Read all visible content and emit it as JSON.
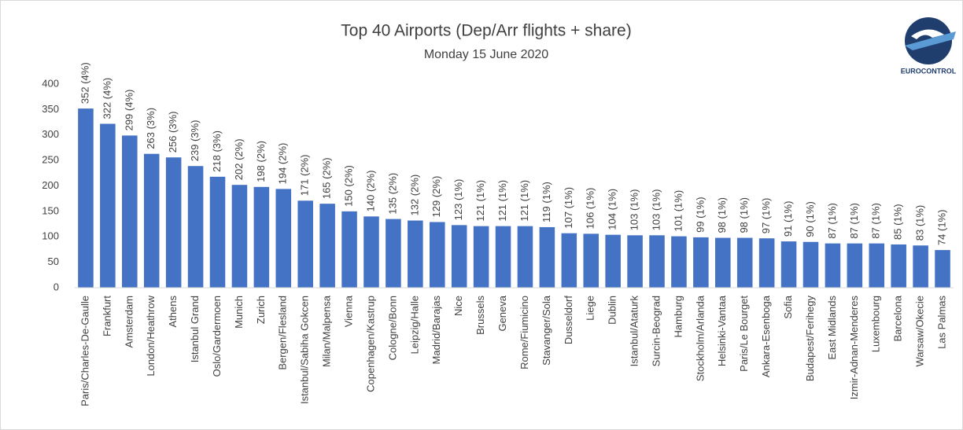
{
  "chart_data": {
    "type": "bar",
    "title": "Top 40 Airports (Dep/Arr flights + share)",
    "subtitle": "Monday 15 June 2020",
    "logo_text": "EUROCONTROL",
    "categories": [
      "Paris/Charles-De-Gaulle",
      "Frankfurt",
      "Amsterdam",
      "London/Heathrow",
      "Athens",
      "Istanbul Grand",
      "Oslo/Gardermoen",
      "Munich",
      "Zurich",
      "Bergen/Flesland",
      "Istanbul/Sabiha Gokcen",
      "Milan/Malpensa",
      "Vienna",
      "Copenhagen/Kastrup",
      "Cologne/Bonn",
      "Leipzig/Halle",
      "Madrid/Barajas",
      "Nice",
      "Brussels",
      "Geneva",
      "Rome/Fiumicino",
      "Stavanger/Sola",
      "Dusseldorf",
      "Liege",
      "Dublin",
      "Istanbul/Ataturk",
      "Surcin-Beograd",
      "Hamburg",
      "Stockholm/Arlanda",
      "Helsinki-Vantaa",
      "Paris/Le Bourget",
      "Ankara-Esenboga",
      "Sofia",
      "Budapest/Ferihegy",
      "East Midlands",
      "Izmir-Adnan-Menderes",
      "Luxembourg",
      "Barcelona",
      "Warsaw/Okecie",
      "Las Palmas"
    ],
    "values": [
      352,
      322,
      299,
      263,
      256,
      239,
      218,
      202,
      198,
      194,
      171,
      165,
      150,
      140,
      135,
      132,
      129,
      123,
      121,
      121,
      121,
      119,
      107,
      106,
      104,
      103,
      103,
      101,
      99,
      98,
      98,
      97,
      91,
      90,
      87,
      87,
      87,
      85,
      83,
      74
    ],
    "value_labels": [
      "352 (4%)",
      "322 (4%)",
      "299 (4%)",
      "263 (3%)",
      "256 (3%)",
      "239 (3%)",
      "218 (3%)",
      "202 (2%)",
      "198 (2%)",
      "194 (2%)",
      "171 (2%)",
      "165 (2%)",
      "150 (2%)",
      "140 (2%)",
      "135 (2%)",
      "132 (2%)",
      "129 (2%)",
      "123 (1%)",
      "121 (1%)",
      "121 (1%)",
      "121 (1%)",
      "119 (1%)",
      "107 (1%)",
      "106 (1%)",
      "104 (1%)",
      "103 (1%)",
      "103 (1%)",
      "101 (1%)",
      "99 (1%)",
      "98 (1%)",
      "98 (1%)",
      "97 (1%)",
      "91 (1%)",
      "90 (1%)",
      "87 (1%)",
      "87 (1%)",
      "87 (1%)",
      "85 (1%)",
      "83 (1%)",
      "74 (1%)"
    ],
    "color": "#4472c4",
    "ylim": [
      0,
      400
    ],
    "yticks": [
      0,
      50,
      100,
      150,
      200,
      250,
      300,
      350,
      400
    ],
    "grid": false
  }
}
